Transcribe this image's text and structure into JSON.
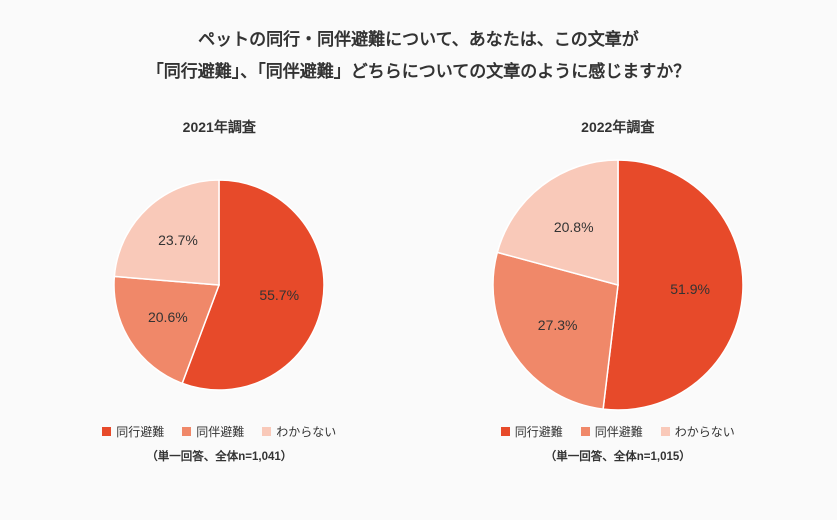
{
  "title": {
    "line1": "ペットの同行・同伴避難について、あなたは、この文章が",
    "line2": "「同行避難」、「同伴避難」どちらについての文章のように感じますか？"
  },
  "colors": {
    "slice1": "#e74a2a",
    "slice2": "#f08869",
    "slice3": "#f9c9b9",
    "text": "#333333",
    "background": "#fafafa"
  },
  "legend_labels": [
    "同行避難",
    "同伴避難",
    "わからない"
  ],
  "charts": [
    {
      "title": "2021年調査",
      "radius": 105,
      "canvas": 260,
      "slices": [
        {
          "value": 55.7,
          "label": "55.7%",
          "color_key": "slice1"
        },
        {
          "value": 20.6,
          "label": "20.6%",
          "color_key": "slice2"
        },
        {
          "value": 23.7,
          "label": "23.7%",
          "color_key": "slice3"
        }
      ],
      "caption": "（単一回答、全体n=1,041）"
    },
    {
      "title": "2022年調査",
      "radius": 125,
      "canvas": 260,
      "slices": [
        {
          "value": 51.9,
          "label": "51.9%",
          "color_key": "slice1"
        },
        {
          "value": 27.3,
          "label": "27.3%",
          "color_key": "slice2"
        },
        {
          "value": 20.8,
          "label": "20.8%",
          "color_key": "slice3"
        }
      ],
      "caption": "（単一回答、全体n=1,015）"
    }
  ],
  "typography": {
    "title_fontsize": 17,
    "chart_title_fontsize": 14,
    "slice_label_fontsize": 14,
    "legend_fontsize": 12,
    "caption_fontsize": 11.5
  }
}
